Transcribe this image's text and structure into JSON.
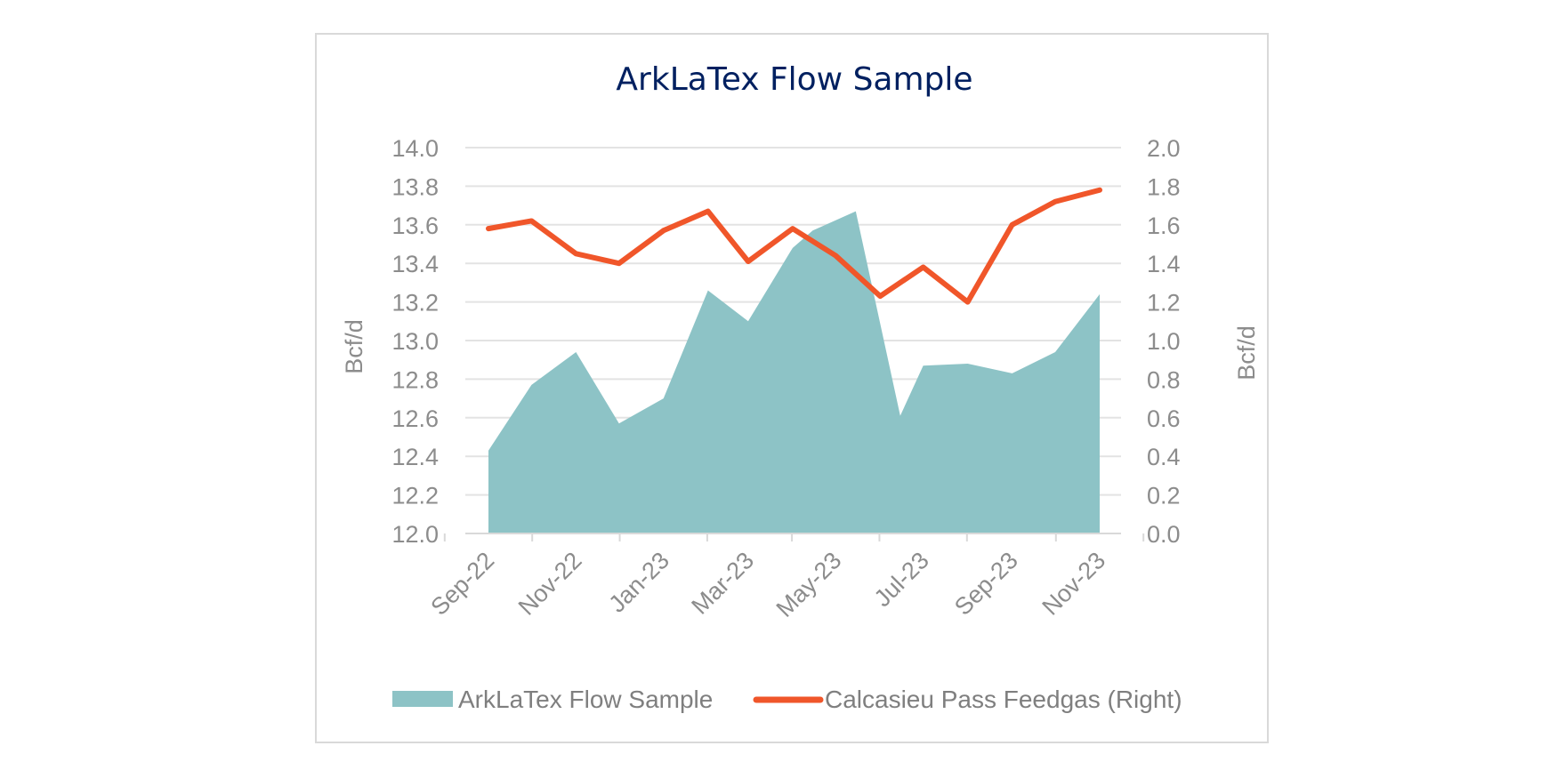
{
  "chart_data": {
    "type": "area",
    "title": "ArkLaTex Flow Sample",
    "ylabel_left": "Bcf/d",
    "ylabel_right": "Bcf/d",
    "x": [
      "Sep-22",
      "Oct-22",
      "Nov-22",
      "Dec-22",
      "Jan-23",
      "Feb-23",
      "Mar-23",
      "Apr-23",
      "May-23",
      "Jun-23",
      "Jul-23",
      "Aug-23",
      "Sep-23",
      "Oct-23",
      "Nov-23"
    ],
    "x_tick_labels": [
      "Sep-22",
      "Nov-22",
      "Jan-23",
      "Mar-23",
      "May-23",
      "Jul-23",
      "Sep-23",
      "Nov-23"
    ],
    "ylim_left": [
      12.0,
      14.0
    ],
    "ylim_right": [
      0.0,
      2.0
    ],
    "y_ticks_left": [
      "12.0",
      "12.2",
      "12.4",
      "12.6",
      "12.8",
      "13.0",
      "13.2",
      "13.4",
      "13.6",
      "13.8",
      "14.0"
    ],
    "y_ticks_right": [
      "0.0",
      "0.2",
      "0.4",
      "0.6",
      "0.8",
      "1.0",
      "1.2",
      "1.4",
      "1.6",
      "1.8",
      "2.0"
    ],
    "grid": true,
    "legend_position": "bottom",
    "series": [
      {
        "name": "ArkLaTex Flow Sample",
        "type": "area",
        "axis": "left",
        "color": "#8dc3c6",
        "x": [
          "2022-09-01",
          "2022-10-01",
          "2022-11-01",
          "2022-12-01",
          "2023-01-01",
          "2023-02-01",
          "2023-03-01",
          "2023-04-01",
          "2023-04-15",
          "2023-05-15",
          "2023-06-15",
          "2023-07-01",
          "2023-08-01",
          "2023-09-01",
          "2023-10-01",
          "2023-11-01"
        ],
        "values": [
          12.43,
          12.77,
          12.94,
          12.57,
          12.7,
          13.26,
          13.1,
          13.48,
          13.57,
          13.67,
          12.61,
          12.87,
          12.88,
          12.83,
          12.94,
          13.24
        ]
      },
      {
        "name": "Calcasieu Pass Feedgas (Right)",
        "type": "line",
        "axis": "right",
        "color": "#f0562a",
        "x": [
          "2022-09-01",
          "2022-10-01",
          "2022-11-01",
          "2022-12-01",
          "2023-01-01",
          "2023-02-01",
          "2023-03-01",
          "2023-04-01",
          "2023-05-01",
          "2023-06-01",
          "2023-07-01",
          "2023-08-01",
          "2023-09-01",
          "2023-10-01",
          "2023-11-01"
        ],
        "values": [
          1.58,
          1.62,
          1.45,
          1.4,
          1.57,
          1.67,
          1.41,
          1.58,
          1.44,
          1.23,
          1.38,
          1.2,
          1.6,
          1.72,
          1.78
        ]
      }
    ]
  }
}
